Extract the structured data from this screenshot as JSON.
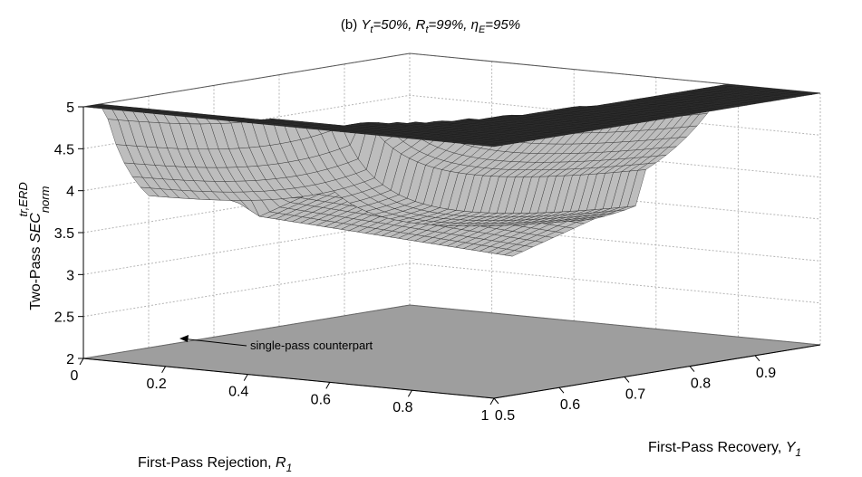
{
  "chart_data": {
    "type": "surface",
    "title_parts": {
      "prefix": "(b) ",
      "y_sym": "Y",
      "y_sub": "t",
      "y_val": "=50%, ",
      "r_sym": "R",
      "r_sub": "t",
      "r_val": "=99%, ",
      "eta_sym": "η",
      "eta_sub": "E",
      "eta_val": "=95%"
    },
    "zlabel_parts": {
      "text": "Two-Pass ",
      "sym": "SEC",
      "sup": "tr,ERD",
      "sub": "norm"
    },
    "xlabel_parts": {
      "text": "First-Pass Rejection, ",
      "sym": "R",
      "sub": "1"
    },
    "ylabel_parts": {
      "text": "First-Pass Recovery, ",
      "sym": "Y",
      "sub": "1"
    },
    "x_ticks": [
      "0",
      "0.2",
      "0.4",
      "0.6",
      "0.8",
      "1"
    ],
    "y_ticks": [
      "0.5",
      "0.6",
      "0.7",
      "0.8",
      "0.9"
    ],
    "z_ticks": [
      "2",
      "2.5",
      "3",
      "3.5",
      "4",
      "4.5",
      "5"
    ],
    "x_range": [
      0,
      1
    ],
    "y_range": [
      0.5,
      1
    ],
    "z_range": [
      2,
      5
    ],
    "grid": true,
    "surface_color": "#3a3a3a",
    "floor_color": "#9e9e9e",
    "surface_z_cap": 5,
    "single_pass_level": 2.0,
    "annotation": "single-pass counterpart"
  }
}
